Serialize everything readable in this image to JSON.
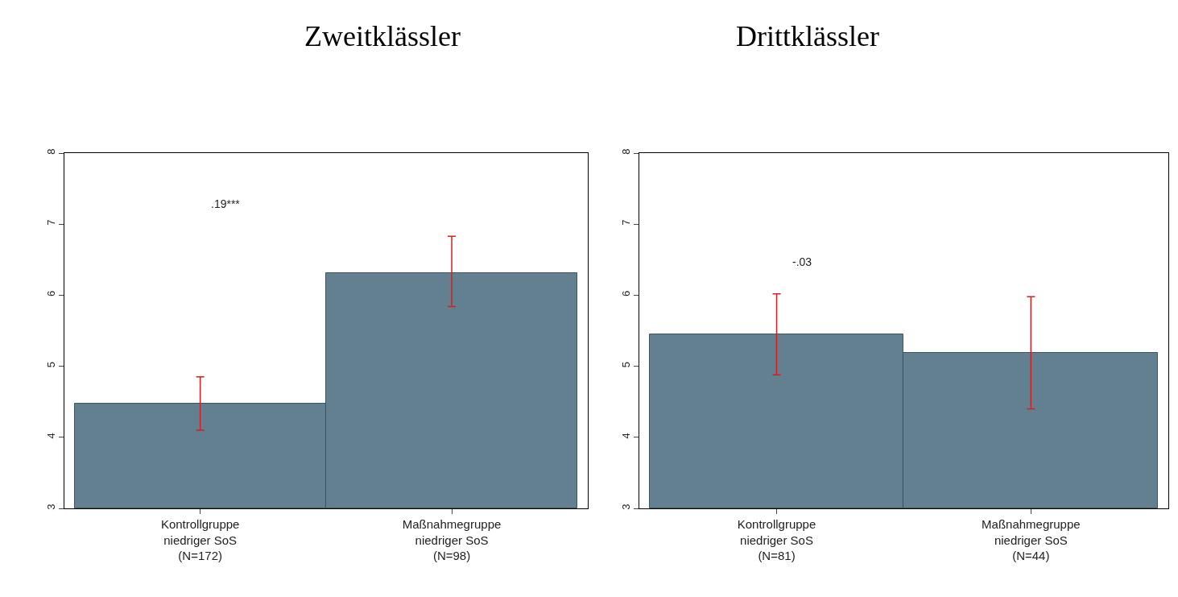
{
  "chart_data": [
    {
      "type": "bar",
      "title": "Zweitklässler",
      "categories": [
        "Kontrollgruppe\nniedriger SoS\n(N=172)",
        "Maßnahmegruppe\nniedriger SoS\n(N=98)"
      ],
      "values": [
        4.47,
        6.31
      ],
      "errors": [
        [
          4.1,
          4.85
        ],
        [
          5.84,
          6.83
        ]
      ],
      "color": "#62808f",
      "ylim": [
        3,
        8
      ],
      "yticks": [
        3,
        4,
        5,
        6,
        7,
        8
      ],
      "annotations": [
        ".19***"
      ]
    },
    {
      "type": "bar",
      "title": "Drittklässler",
      "categories": [
        "Kontrollgruppe\nniedriger SoS\n(N=81)",
        "Maßnahmegruppe\nniedriger SoS\n(N=44)"
      ],
      "values": [
        5.45,
        5.19
      ],
      "errors": [
        [
          4.88,
          6.02
        ],
        [
          4.4,
          5.98
        ]
      ],
      "color": "#62808f",
      "ylim": [
        3,
        8
      ],
      "yticks": [
        3,
        4,
        5,
        6,
        7,
        8
      ],
      "annotations": [
        "-.03"
      ]
    }
  ]
}
